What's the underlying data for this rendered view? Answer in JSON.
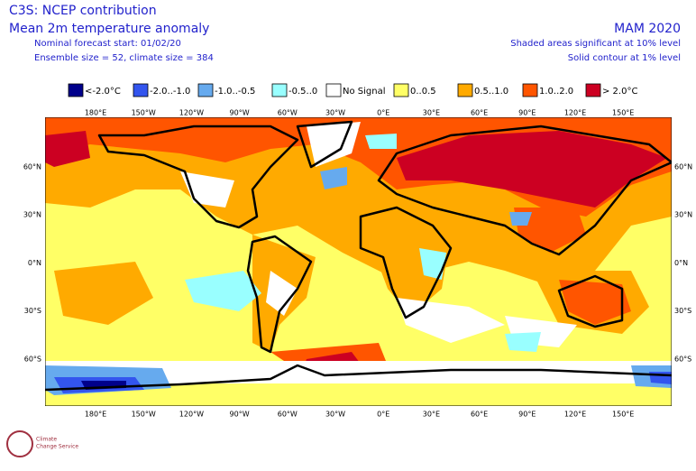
{
  "header": {
    "title": "C3S: NCEP contribution",
    "subtitle": "Mean 2m temperature anomaly",
    "forecast_start": "Nominal forecast start: 01/02/20",
    "ensemble": "Ensemble size = 52, climate size = 384",
    "period": "MAM 2020",
    "significance": "Shaded areas significant at 10% level",
    "contour": "Solid contour at 1% level"
  },
  "legend": [
    {
      "label": "<-2.0°C",
      "color": "#00008b"
    },
    {
      "label": "-2.0..-1.0",
      "color": "#3355ee"
    },
    {
      "label": "-1.0..-0.5",
      "color": "#66aaee"
    },
    {
      "label": "-0.5..0",
      "color": "#99ffff"
    },
    {
      "label": "No Signal",
      "color": "#ffffff"
    },
    {
      "label": "0..0.5",
      "color": "#ffff66"
    },
    {
      "label": "0.5..1.0",
      "color": "#ffaa00"
    },
    {
      "label": "1.0..2.0",
      "color": "#ff5500"
    },
    {
      "label": "> 2.0°C",
      "color": "#cc0022"
    }
  ],
  "map": {
    "lon_labels": [
      "180°E",
      "150°W",
      "120°W",
      "90°W",
      "60°W",
      "30°W",
      "0°E",
      "30°E",
      "60°E",
      "90°E",
      "120°E",
      "150°E"
    ],
    "lat_labels": [
      "60°N",
      "30°N",
      "0°N",
      "30°S",
      "60°S"
    ]
  },
  "logo": {
    "line1": "Climate",
    "line2": "Change Service"
  }
}
